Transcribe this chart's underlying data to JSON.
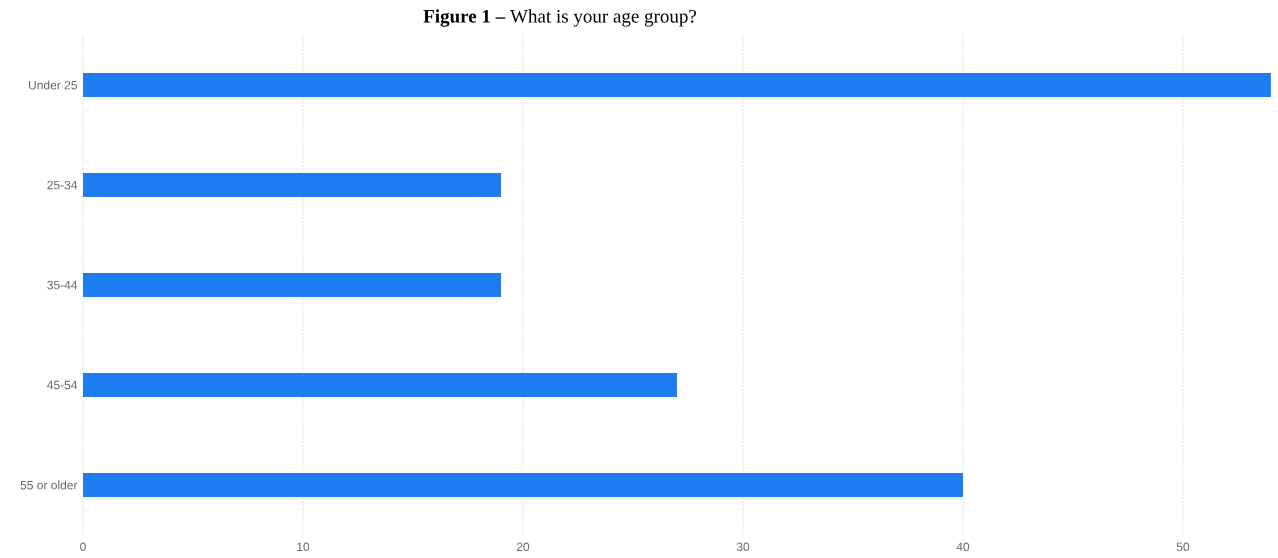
{
  "chart_data": {
    "type": "bar",
    "orientation": "horizontal",
    "title": "**Figure 1 –** What is your age group?",
    "categories": [
      "Under 25",
      "25-34",
      "35-44",
      "45-54",
      "55 or older"
    ],
    "values": [
      54,
      19,
      19,
      27,
      40
    ],
    "color": "#1f7bf0",
    "xlim": [
      0,
      54
    ],
    "xticks": [
      0,
      10,
      20,
      30,
      40,
      50
    ],
    "grid": "x"
  }
}
